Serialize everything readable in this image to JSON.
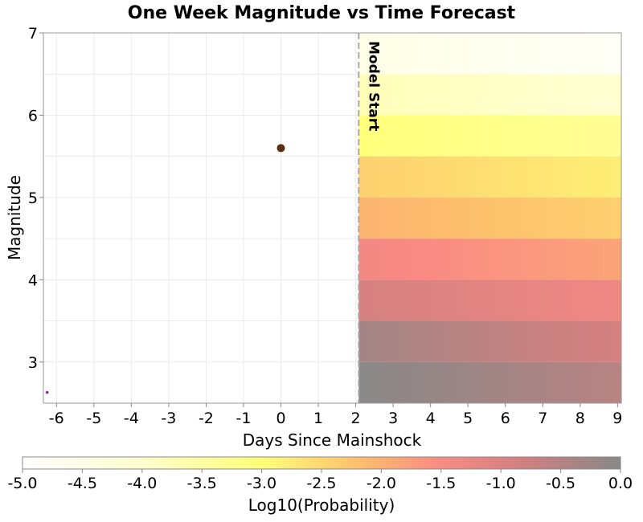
{
  "chart_data": {
    "type": "heatmap",
    "title": "One Week Magnitude vs Time Forecast",
    "xlabel": "Days Since Mainshock",
    "ylabel": "Magnitude",
    "xlim": [
      -6.35,
      9.1
    ],
    "ylim": [
      2.5,
      7.0
    ],
    "x_ticks": [
      -6,
      -5,
      -4,
      -3,
      -2,
      -1,
      0,
      1,
      2,
      3,
      4,
      5,
      6,
      7,
      8,
      9
    ],
    "y_ticks": [
      3,
      4,
      5,
      6,
      7
    ],
    "grid": true,
    "model_start": {
      "x": 2.08,
      "label": "Model Start"
    },
    "heatmap": {
      "x_start": 2.08,
      "x_end": 9.1,
      "x_step": 0.25,
      "mag_bins": [
        2.5,
        3.0,
        3.5,
        4.0,
        4.5,
        5.0,
        5.5,
        6.0,
        6.5,
        7.0
      ],
      "log10_probability_start": [
        -0.02,
        -0.3,
        -0.9,
        -1.4,
        -2.05,
        -2.4,
        -3.05,
        -3.75,
        -4.5
      ],
      "log10_probability_end": [
        -0.55,
        -0.9,
        -1.35,
        -1.85,
        -2.4,
        -2.8,
        -3.35,
        -4.05,
        -4.85
      ]
    },
    "events": [
      {
        "x": 0.0,
        "y": 5.6,
        "kind": "mainshock",
        "color": "#5a2e0c"
      },
      {
        "x": -6.25,
        "y": 2.63,
        "kind": "aftershock",
        "color": "#8e2a92"
      }
    ],
    "colorbar": {
      "label": "Log10(Probability)",
      "range": [
        -5.0,
        0.0
      ],
      "ticks": [
        "-5.0",
        "-4.5",
        "-4.0",
        "-3.5",
        "-3.0",
        "-2.5",
        "-2.0",
        "-1.5",
        "-1.0",
        "-0.5",
        "0.0"
      ],
      "stops": [
        {
          "v": -5.0,
          "color": "#ffffff"
        },
        {
          "v": -4.0,
          "color": "#ffffd0"
        },
        {
          "v": -3.0,
          "color": "#ffff78"
        },
        {
          "v": -2.2,
          "color": "#fdc06c"
        },
        {
          "v": -1.5,
          "color": "#f98a84"
        },
        {
          "v": -0.8,
          "color": "#d08080"
        },
        {
          "v": 0.0,
          "color": "#888888"
        }
      ]
    }
  }
}
